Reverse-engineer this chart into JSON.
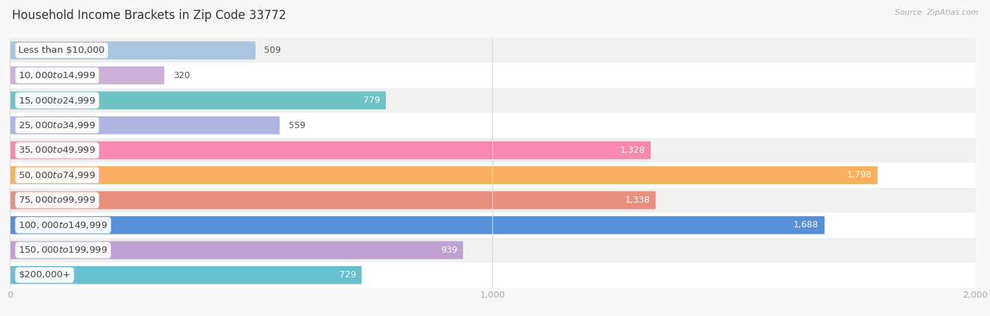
{
  "title": "Household Income Brackets in Zip Code 33772",
  "source": "Source: ZipAtlas.com",
  "categories": [
    "Less than $10,000",
    "$10,000 to $14,999",
    "$15,000 to $24,999",
    "$25,000 to $34,999",
    "$35,000 to $49,999",
    "$50,000 to $74,999",
    "$75,000 to $99,999",
    "$100,000 to $149,999",
    "$150,000 to $199,999",
    "$200,000+"
  ],
  "values": [
    509,
    320,
    779,
    559,
    1328,
    1798,
    1338,
    1688,
    939,
    729
  ],
  "bar_colors": [
    "#aac4e0",
    "#ccb0d8",
    "#6ec4c4",
    "#b0b4e0",
    "#f888b0",
    "#f8b060",
    "#e89080",
    "#5890d8",
    "#c0a0d0",
    "#68c0d0"
  ],
  "xlim": [
    0,
    2000
  ],
  "xticks": [
    0,
    1000,
    2000
  ],
  "background_color": "#f7f7f7",
  "row_bg_color": "#ffffff",
  "alt_row_bg_color": "#f0f0f0",
  "title_fontsize": 12,
  "label_fontsize": 9.5,
  "value_fontsize": 9
}
